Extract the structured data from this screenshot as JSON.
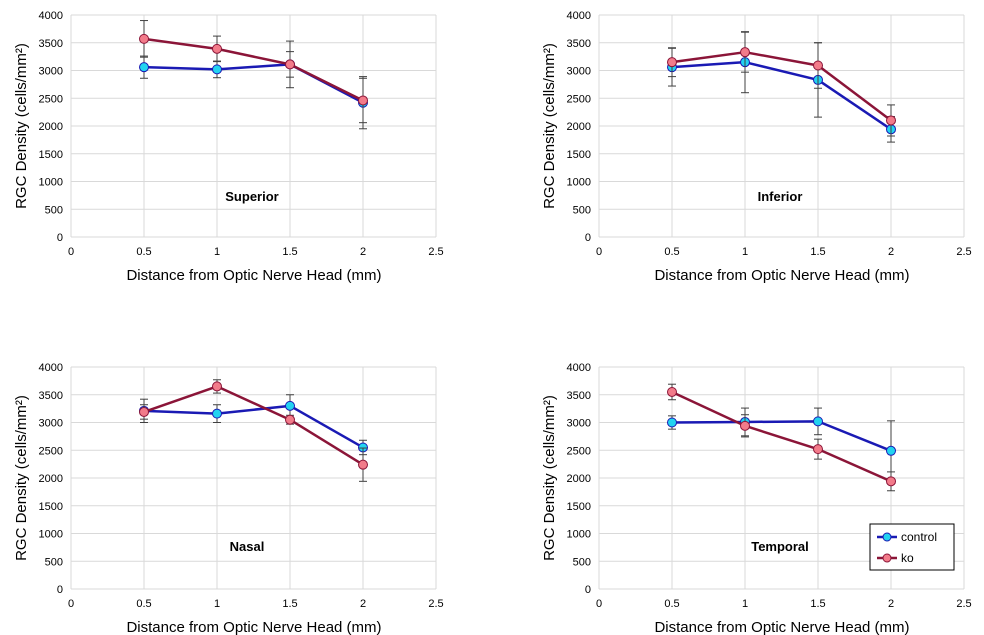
{
  "colors": {
    "control_line": "#1a1ab4",
    "control_marker": "#22d3f0",
    "ko_line": "#8b1538",
    "ko_marker": "#f27b8a",
    "grid": "#d9d9d9",
    "error_bar": "#404040"
  },
  "legend": {
    "placement": "bottom-right of Temporal panel",
    "items": [
      {
        "name": "control"
      },
      {
        "name": "ko"
      }
    ]
  },
  "chart_data": [
    {
      "type": "line",
      "panel_label": "Superior",
      "xlabel": "Distance from Optic Nerve Head (mm)",
      "ylabel": "RGC Density (cells/mm²)",
      "xlim": [
        0,
        2.5
      ],
      "ylim": [
        0,
        4000
      ],
      "xticks": [
        "0",
        "0.5",
        "1",
        "1.5",
        "2",
        "2.5"
      ],
      "yticks": [
        "0",
        "500",
        "1000",
        "1500",
        "2000",
        "2500",
        "3000",
        "3500",
        "4000"
      ],
      "grid": true,
      "series": [
        {
          "name": "control",
          "x": [
            0.5,
            1,
            1.5,
            2
          ],
          "y": [
            3060,
            3020,
            3110,
            2420
          ],
          "err": [
            200,
            150,
            230,
            470
          ]
        },
        {
          "name": "ko",
          "x": [
            0.5,
            1,
            1.5,
            2
          ],
          "y": [
            3570,
            3390,
            3110,
            2460
          ],
          "err": [
            330,
            230,
            420,
            400
          ]
        }
      ]
    },
    {
      "type": "line",
      "panel_label": "Inferior",
      "xlabel": "Distance from Optic Nerve Head (mm)",
      "ylabel": "RGC Density (cells/mm²)",
      "xlim": [
        0,
        2.5
      ],
      "ylim": [
        0,
        4000
      ],
      "xticks": [
        "0",
        "0.5",
        "1",
        "1.5",
        "2",
        "2.5"
      ],
      "yticks": [
        "0",
        "500",
        "1000",
        "1500",
        "2000",
        "2500",
        "3000",
        "3500",
        "4000"
      ],
      "grid": true,
      "series": [
        {
          "name": "control",
          "x": [
            0.5,
            1,
            1.5,
            2
          ],
          "y": [
            3060,
            3150,
            2830,
            1940
          ],
          "err": [
            340,
            550,
            670,
            230
          ]
        },
        {
          "name": "ko",
          "x": [
            0.5,
            1,
            1.5,
            2
          ],
          "y": [
            3150,
            3330,
            3090,
            2100
          ],
          "err": [
            260,
            360,
            410,
            280
          ]
        }
      ]
    },
    {
      "type": "line",
      "panel_label": "Nasal",
      "xlabel": "Distance from Optic Nerve Head (mm)",
      "ylabel": "RGC Density (cells/mm²)",
      "xlim": [
        0,
        2.5
      ],
      "ylim": [
        0,
        4000
      ],
      "xticks": [
        "0",
        "0.5",
        "1",
        "1.5",
        "2",
        "2.5"
      ],
      "yticks": [
        "0",
        "500",
        "1000",
        "1500",
        "2000",
        "2500",
        "3000",
        "3500",
        "4000"
      ],
      "grid": true,
      "series": [
        {
          "name": "control",
          "x": [
            0.5,
            1,
            1.5,
            2
          ],
          "y": [
            3210,
            3160,
            3300,
            2550
          ],
          "err": [
            210,
            160,
            200,
            130
          ]
        },
        {
          "name": "ko",
          "x": [
            0.5,
            1,
            1.5,
            2
          ],
          "y": [
            3190,
            3650,
            3050,
            2240
          ],
          "err": [
            130,
            120,
            80,
            300
          ]
        }
      ]
    },
    {
      "type": "line",
      "panel_label": "Temporal",
      "xlabel": "Distance from Optic Nerve Head (mm)",
      "ylabel": "RGC Density (cells/mm²)",
      "xlim": [
        0,
        2.5
      ],
      "ylim": [
        0,
        4000
      ],
      "xticks": [
        "0",
        "0.5",
        "1",
        "1.5",
        "2",
        "2.5"
      ],
      "yticks": [
        "0",
        "500",
        "1000",
        "1500",
        "2000",
        "2500",
        "3000",
        "3500",
        "4000"
      ],
      "grid": true,
      "series": [
        {
          "name": "control",
          "x": [
            0.5,
            1,
            1.5,
            2
          ],
          "y": [
            3000,
            3010,
            3020,
            2490
          ],
          "err": [
            120,
            250,
            240,
            540
          ]
        },
        {
          "name": "ko",
          "x": [
            0.5,
            1,
            1.5,
            2
          ],
          "y": [
            3550,
            2940,
            2520,
            1940
          ],
          "err": [
            140,
            200,
            180,
            170
          ]
        }
      ]
    }
  ]
}
